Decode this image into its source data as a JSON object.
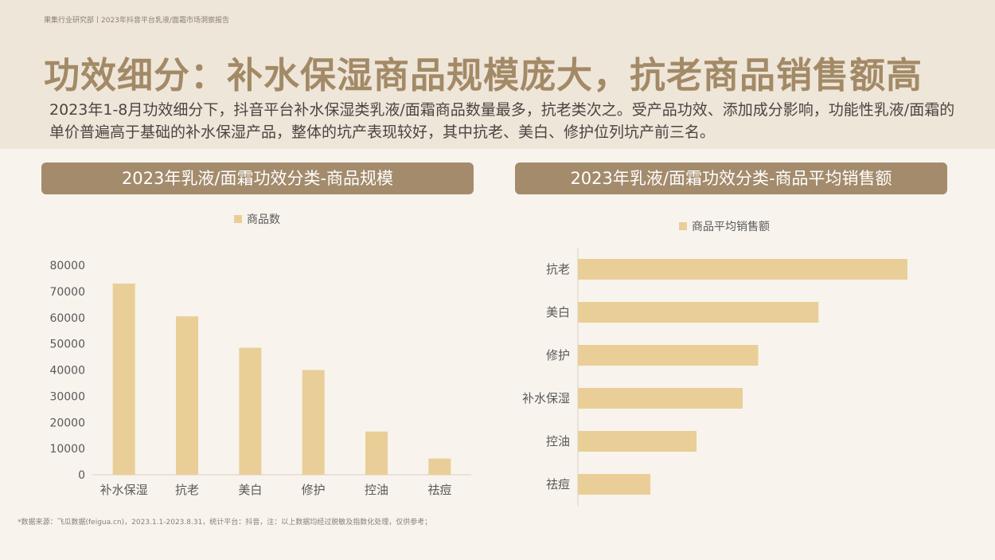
{
  "header": {
    "source": "果集行业研究部丨2023年抖音平台乳液/面霜市场洞察报告",
    "title": "功效细分：补水保湿商品规模庞大，抗老商品销售额高",
    "description": "2023年1-8月功效细分下，抖音平台补水保湿类乳液/面霜商品数量最多，抗老类次之。受产品功效、添加成分影响，功能性乳液/面霜的单价普遍高于基础的补水保湿产品，整体的坑产表现较好，其中抗老、美白、修护位列坑产前三名。"
  },
  "panels": {
    "left_title": "2023年乳液/面霜功效分类-商品规模",
    "right_title": "2023年乳液/面霜功效分类-商品平均销售额"
  },
  "footnote": "*数据来源：飞瓜数据(feigua.cn)，2023.1.1-2023.8.31，统计平台：抖音，注：以上数据均经过脱敏及指数化处理，仅供参考；",
  "colors": {
    "bar": "#e9cf97",
    "axis": "#d9d2c8",
    "label": "#595959",
    "title_bg": "#a38b6c",
    "header_bg": "#efe6da",
    "page_bg": "#f8f3ed"
  },
  "chart_data": [
    {
      "type": "bar",
      "orientation": "vertical",
      "categories": [
        "补水保湿",
        "抗老",
        "美白",
        "修护",
        "控油",
        "祛痘"
      ],
      "series": [
        {
          "name": "商品数",
          "values": [
            73000,
            60500,
            48500,
            40000,
            16500,
            6200
          ]
        }
      ],
      "ylim": [
        0,
        80000
      ],
      "yticks": [
        0,
        10000,
        20000,
        30000,
        40000,
        50000,
        60000,
        70000,
        80000
      ],
      "legend": "top",
      "grid": false
    },
    {
      "type": "bar",
      "orientation": "horizontal",
      "categories": [
        "抗老",
        "美白",
        "修护",
        "补水保湿",
        "控油",
        "祛痘"
      ],
      "series": [
        {
          "name": "商品平均销售额",
          "values": [
            100,
            73,
            54.7,
            50,
            36,
            22
          ]
        }
      ],
      "xlim": [
        0,
        100
      ],
      "legend": "top",
      "grid": false
    }
  ]
}
